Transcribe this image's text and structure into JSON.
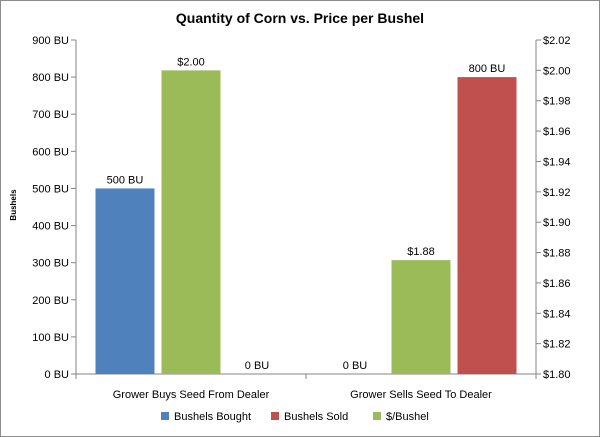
{
  "chart_data": {
    "type": "bar",
    "title": "Quantity of Corn vs. Price per Bushel",
    "ylabel": "Bushels",
    "categories": [
      "Grower Buys Seed From Dealer",
      "Grower Sells Seed To Dealer"
    ],
    "series": [
      {
        "name": "Bushels Bought",
        "axis": "left",
        "color": "#4f81bd",
        "values": [
          500,
          null
        ],
        "labels": [
          "500 BU",
          "0 BU"
        ]
      },
      {
        "name": "$/Bushel",
        "axis": "right",
        "color": "#9bbb59",
        "values": [
          2.0,
          1.875
        ],
        "labels": [
          "$2.00",
          "$1.88"
        ]
      },
      {
        "name": "Bushels Sold",
        "axis": "right-position",
        "color": "#c0504d",
        "values": [
          null,
          800
        ],
        "labels": [
          "0 BU",
          "800 BU"
        ]
      }
    ],
    "legend_order": [
      "Bushels Bought",
      "Bushels Sold",
      "$/Bushel"
    ],
    "legend_position": "bottom",
    "left_axis": {
      "ylim": [
        0,
        900
      ],
      "ticks": [
        0,
        100,
        200,
        300,
        400,
        500,
        600,
        700,
        800,
        900
      ],
      "tick_labels": [
        "0 BU",
        "100 BU",
        "200 BU",
        "300 BU",
        "400 BU",
        "500 BU",
        "600 BU",
        "700 BU",
        "800 BU",
        "900 BU"
      ]
    },
    "right_axis": {
      "ylim": [
        1.8,
        2.02
      ],
      "ticks": [
        1.8,
        1.82,
        1.84,
        1.86,
        1.88,
        1.9,
        1.92,
        1.94,
        1.96,
        1.98,
        2.0,
        2.02
      ],
      "tick_labels": [
        "$1.80",
        "$1.82",
        "$1.84",
        "$1.86",
        "$1.88",
        "$1.90",
        "$1.92",
        "$1.94",
        "$1.96",
        "$1.98",
        "$2.00",
        "$2.02"
      ]
    },
    "grid": false,
    "colors": {
      "axis": "#868686",
      "frame": "#8c8c8c"
    }
  }
}
